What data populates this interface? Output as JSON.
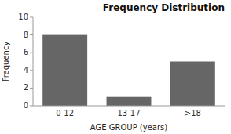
{
  "chart_data": {
    "type": "bar",
    "title": "Frequency Distribution",
    "xlabel": "AGE GROUP (years)",
    "ylabel": "Frequency",
    "categories": [
      "0-12",
      "13-17",
      ">18"
    ],
    "values": [
      8,
      1,
      5
    ],
    "color": "#666666",
    "ylim": [
      0,
      10
    ],
    "yticks": [
      0,
      2,
      4,
      6,
      8,
      10
    ],
    "grid": false
  }
}
